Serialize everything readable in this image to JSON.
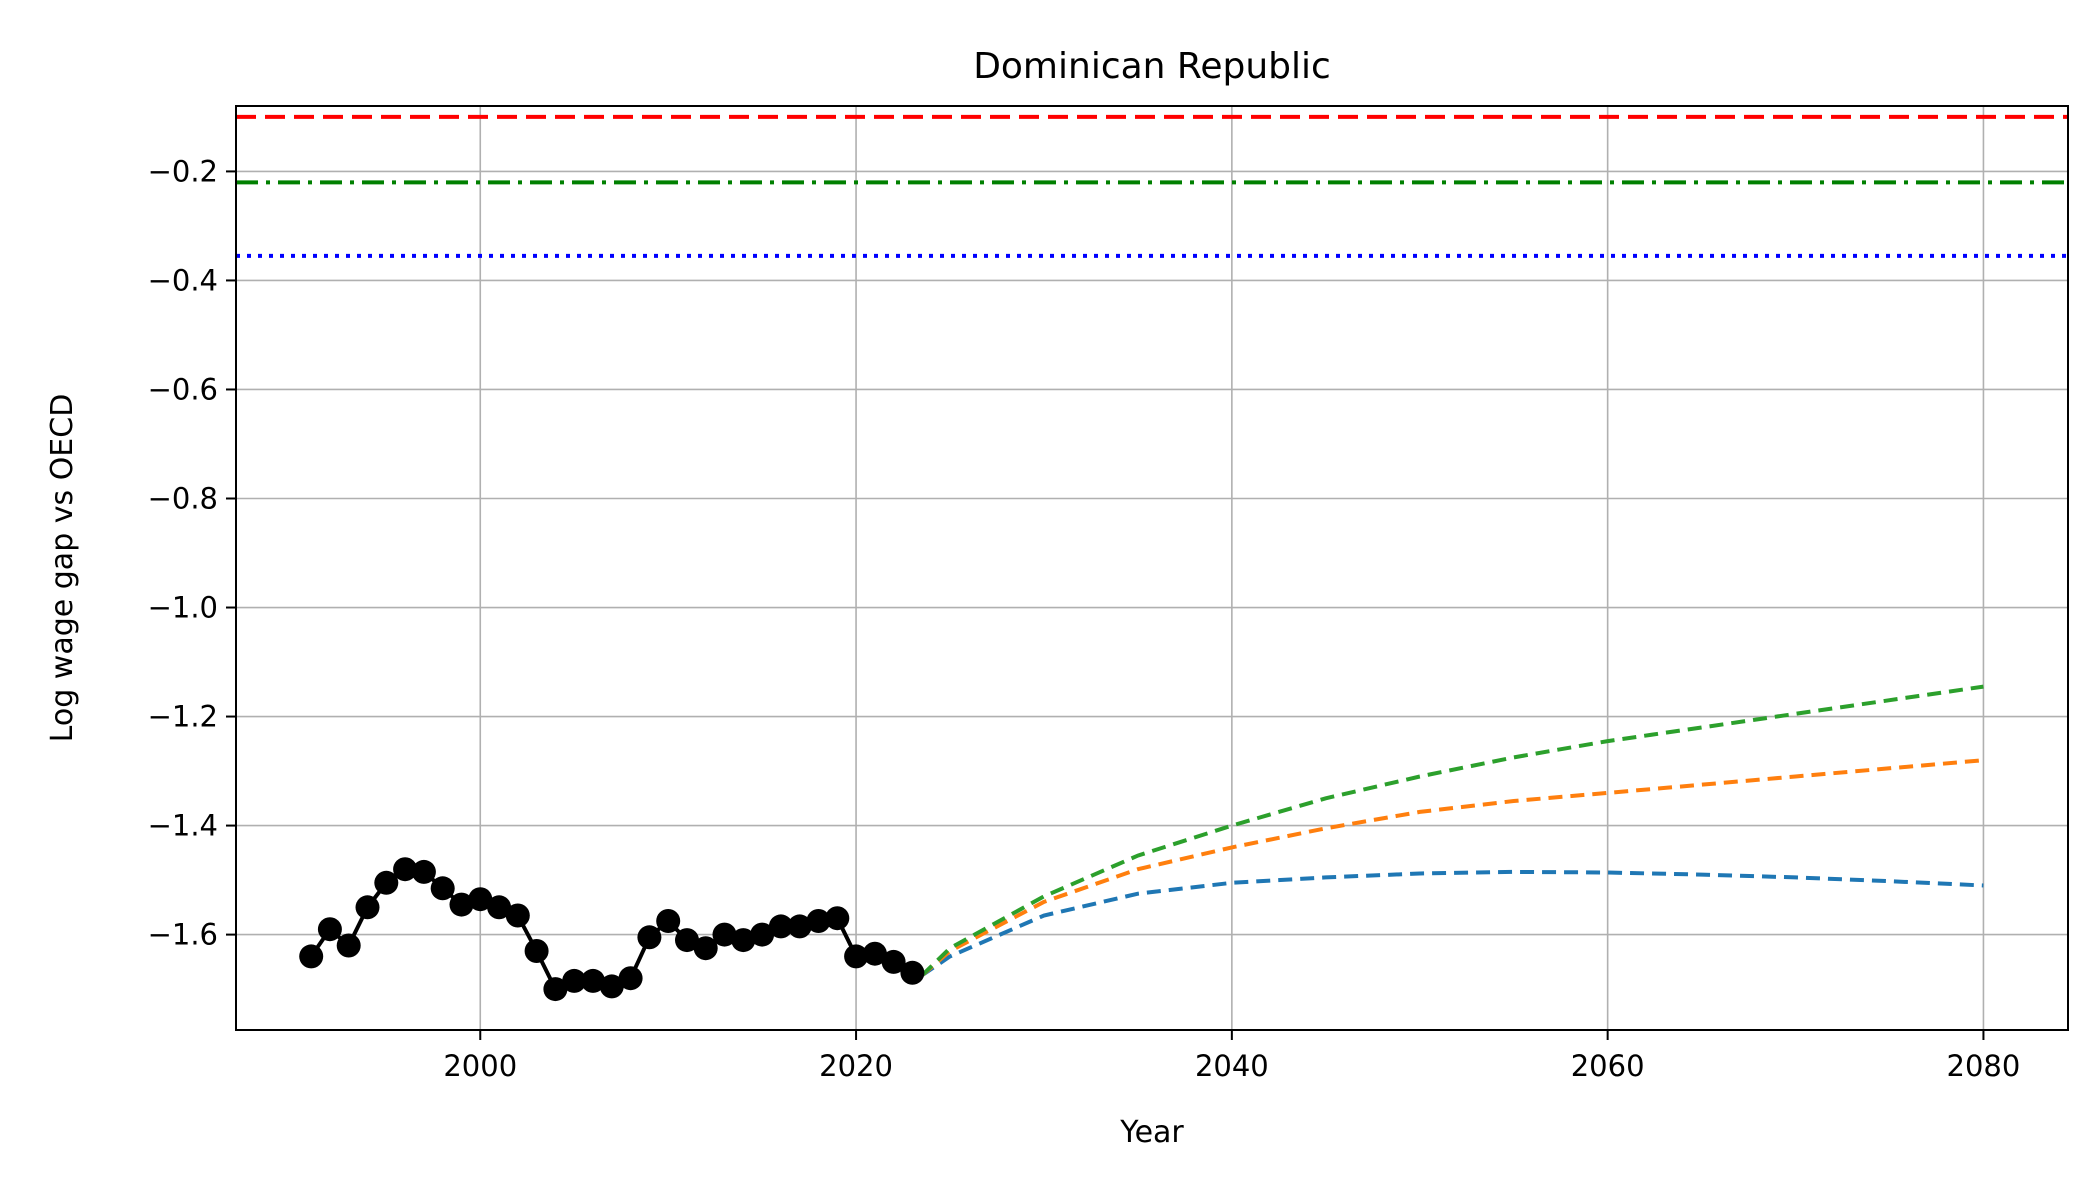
{
  "chart_data": {
    "type": "line",
    "title": "Dominican Republic",
    "xlabel": "Year",
    "ylabel": "Log wage gap vs OECD",
    "xlim": [
      1987,
      2084.5
    ],
    "ylim": [
      -1.775,
      -0.08
    ],
    "x_ticks": [
      2000,
      2020,
      2040,
      2060,
      2080
    ],
    "y_ticks": [
      -0.2,
      -0.4,
      -0.6,
      -0.8,
      -1.0,
      -1.2,
      -1.4,
      -1.6
    ],
    "grid": true,
    "legend": "none",
    "reference_lines": [
      {
        "y": -0.1,
        "color": "#ff0000",
        "style": "dashed"
      },
      {
        "y": -0.22,
        "color": "#008000",
        "style": "dashdot"
      },
      {
        "y": -0.355,
        "color": "#0000ff",
        "style": "dotted"
      }
    ],
    "historical": {
      "color": "#000000",
      "x": [
        1991,
        1992,
        1993,
        1994,
        1995,
        1996,
        1997,
        1998,
        1999,
        2000,
        2001,
        2002,
        2003,
        2004,
        2005,
        2006,
        2007,
        2008,
        2009,
        2010,
        2011,
        2012,
        2013,
        2014,
        2015,
        2016,
        2017,
        2018,
        2019,
        2020,
        2021,
        2022,
        2023
      ],
      "y": [
        -1.64,
        -1.59,
        -1.62,
        -1.55,
        -1.505,
        -1.48,
        -1.485,
        -1.515,
        -1.545,
        -1.535,
        -1.55,
        -1.565,
        -1.63,
        -1.7,
        -1.685,
        -1.685,
        -1.695,
        -1.68,
        -1.605,
        -1.575,
        -1.61,
        -1.625,
        -1.6,
        -1.61,
        -1.6,
        -1.585,
        -1.585,
        -1.575,
        -1.57,
        -1.64,
        -1.635,
        -1.65,
        -1.67
      ]
    },
    "projections": [
      {
        "color": "#1f77b4",
        "x": [
          2023.5,
          2025,
          2030,
          2035,
          2040,
          2045,
          2050,
          2055,
          2060,
          2065,
          2070,
          2075,
          2080
        ],
        "y": [
          -1.675,
          -1.64,
          -1.565,
          -1.525,
          -1.505,
          -1.495,
          -1.488,
          -1.485,
          -1.486,
          -1.49,
          -1.495,
          -1.502,
          -1.51
        ]
      },
      {
        "color": "#ff7f0e",
        "x": [
          2023.5,
          2025,
          2030,
          2035,
          2040,
          2045,
          2050,
          2055,
          2060,
          2065,
          2070,
          2075,
          2080
        ],
        "y": [
          -1.675,
          -1.63,
          -1.54,
          -1.48,
          -1.44,
          -1.405,
          -1.375,
          -1.355,
          -1.34,
          -1.325,
          -1.31,
          -1.295,
          -1.28
        ]
      },
      {
        "color": "#2ca02c",
        "x": [
          2023.5,
          2025,
          2030,
          2035,
          2040,
          2045,
          2050,
          2055,
          2060,
          2065,
          2070,
          2075,
          2080
        ],
        "y": [
          -1.675,
          -1.625,
          -1.53,
          -1.455,
          -1.4,
          -1.35,
          -1.31,
          -1.275,
          -1.245,
          -1.22,
          -1.195,
          -1.17,
          -1.145
        ]
      }
    ]
  }
}
